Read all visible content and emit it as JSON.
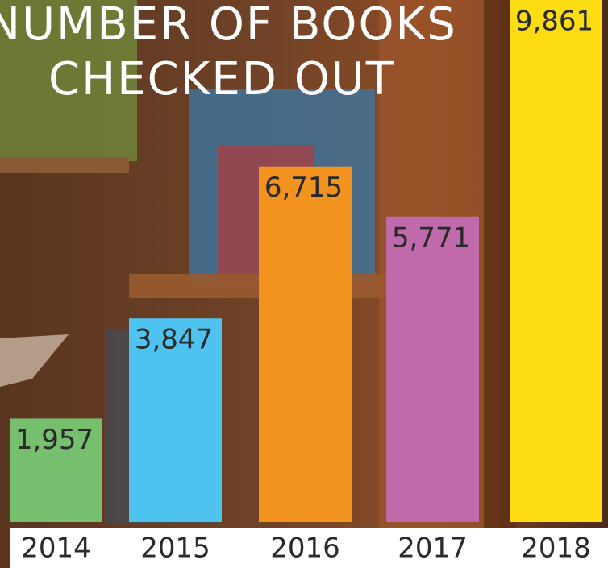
{
  "chart_data": {
    "type": "bar",
    "title": [
      "NUMBER OF BOOKS",
      "CHECKED OUT"
    ],
    "categories": [
      "2014",
      "2015",
      "2016",
      "2017",
      "2018"
    ],
    "values": [
      1957,
      3847,
      6715,
      5771,
      9861
    ],
    "value_labels": [
      "1,957",
      "3,847",
      "6,715",
      "5,771",
      "9,861"
    ],
    "colors": [
      "#76bf6f",
      "#4fc3ef",
      "#f2921f",
      "#c06aab",
      "#fcdc12"
    ]
  }
}
